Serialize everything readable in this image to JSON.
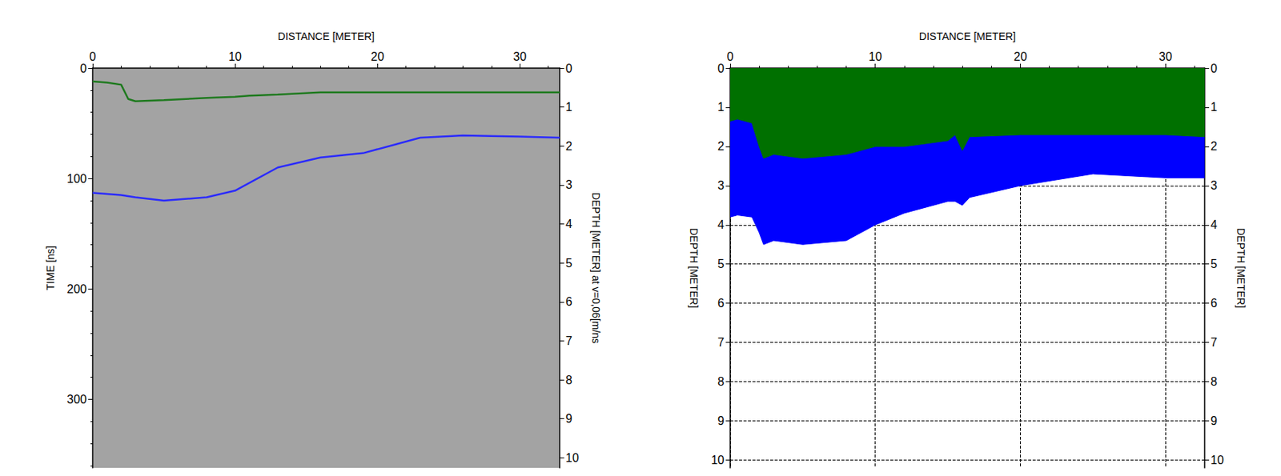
{
  "chart_data": [
    {
      "type": "line",
      "x_label": "DISTANCE [METER]",
      "y_label": "TIME [ns]",
      "y2_label": "DEPTH [METER] at v=0,06[m/ns",
      "x": [
        0,
        1,
        2,
        2.5,
        3,
        5,
        8,
        10,
        11,
        13,
        16,
        19,
        21,
        23,
        26,
        30,
        32.8
      ],
      "series": [
        {
          "color": "#1f7a1f",
          "values": [
            12,
            13,
            15,
            28,
            30,
            29,
            27,
            26,
            25,
            24,
            22,
            22,
            22,
            22,
            22,
            22,
            22
          ]
        },
        {
          "color": "#2b2bff",
          "values": [
            113,
            114,
            115,
            116,
            117,
            120,
            117,
            111,
            104,
            90,
            81,
            77,
            70,
            63,
            61,
            62,
            63
          ]
        }
      ],
      "xlim": [
        0,
        32.8
      ],
      "xticks": [
        0,
        10,
        20,
        30
      ],
      "ylim": [
        0,
        362
      ],
      "yticks": [
        0,
        100,
        200,
        300
      ],
      "y2lim": [
        0,
        10.26
      ],
      "y2ticks": [
        0,
        1,
        2,
        3,
        4,
        5,
        6,
        7,
        8,
        9,
        10
      ],
      "grid": false
    },
    {
      "type": "area",
      "x_label": "DISTANCE [METER]",
      "y_label": "DEPTH [METER]",
      "y2_label": "DEPTH [METER]",
      "x": [
        0,
        0.5,
        1.5,
        2,
        2.3,
        3,
        5,
        8,
        10,
        12,
        15,
        15.5,
        16,
        16.5,
        20,
        25,
        30,
        32.7
      ],
      "series": [
        {
          "color": "#0000ff",
          "values": [
            3.8,
            3.75,
            3.8,
            4.2,
            4.5,
            4.4,
            4.5,
            4.4,
            4.0,
            3.7,
            3.4,
            3.4,
            3.5,
            3.3,
            3.0,
            2.7,
            2.8,
            2.8
          ]
        },
        {
          "color": "#007000",
          "values": [
            1.35,
            1.3,
            1.4,
            2.0,
            2.3,
            2.2,
            2.3,
            2.2,
            2.0,
            2.0,
            1.85,
            1.7,
            2.1,
            1.75,
            1.7,
            1.7,
            1.7,
            1.75
          ]
        }
      ],
      "xlim": [
        0,
        32.7
      ],
      "xticks": [
        0,
        10,
        20,
        30
      ],
      "ylim": [
        0,
        10.2
      ],
      "yticks": [
        0,
        1,
        2,
        3,
        4,
        5,
        6,
        7,
        8,
        9,
        10
      ],
      "y2lim": [
        0,
        10.2
      ],
      "y2ticks": [
        0,
        1,
        2,
        3,
        4,
        5,
        6,
        7,
        8,
        9,
        10
      ],
      "grid": true
    }
  ]
}
